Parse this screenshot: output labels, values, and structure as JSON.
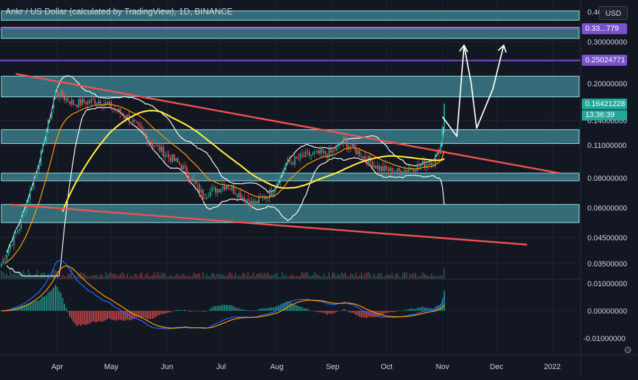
{
  "chart": {
    "title": "Ankr / US Dollar (calculated by TradingView), 1D, BINANCE",
    "currency": "USD"
  },
  "price_scale": {
    "ticks": [
      {
        "label": "0.40000000",
        "value": 0.4
      },
      {
        "label": "0.30000000",
        "value": 0.3
      },
      {
        "label": "0.20000000",
        "value": 0.2
      },
      {
        "label": "0.14000000",
        "value": 0.14
      },
      {
        "label": "0.11000000",
        "value": 0.11
      },
      {
        "label": "0.08000000",
        "value": 0.08
      },
      {
        "label": "0.06000000",
        "value": 0.06
      },
      {
        "label": "0.04500000",
        "value": 0.045
      },
      {
        "label": "0.03500000",
        "value": 0.035
      }
    ],
    "tags": [
      {
        "label": "0.33...779",
        "value": 0.34,
        "color": "#7b52ce"
      },
      {
        "label": "0.25024771",
        "value": 0.25024771,
        "color": "#7b52ce"
      },
      {
        "label": "0.16421228",
        "value": 0.16421228,
        "color": "#26a69a"
      }
    ],
    "countdown": "13:36:39"
  },
  "oscillator_scale": {
    "ticks": [
      {
        "label": "0.01000000",
        "value": 0.01
      },
      {
        "label": "0.00000000",
        "value": 0
      },
      {
        "label": "-0.01000000",
        "value": -0.01
      }
    ]
  },
  "time_axis": {
    "ticks": [
      {
        "label": "Apr",
        "day": 31
      },
      {
        "label": "May",
        "day": 61
      },
      {
        "label": "Jun",
        "day": 92
      },
      {
        "label": "Jul",
        "day": 122
      },
      {
        "label": "Aug",
        "day": 153
      },
      {
        "label": "Sep",
        "day": 184
      },
      {
        "label": "Oct",
        "day": 214
      },
      {
        "label": "Nov",
        "day": 245
      },
      {
        "label": "Dec",
        "day": 275
      },
      {
        "label": "2022",
        "day": 306
      }
    ]
  },
  "drawings": {
    "zones": [
      {
        "from": 0.37,
        "to": 0.405
      },
      {
        "from": 0.31,
        "to": 0.345
      },
      {
        "from": 0.176,
        "to": 0.215
      },
      {
        "from": 0.112,
        "to": 0.128
      },
      {
        "from": 0.078,
        "to": 0.084
      },
      {
        "from": 0.052,
        "to": 0.062
      }
    ],
    "zone_color": "#4fb3bf",
    "hlines": [
      {
        "value": 0.34,
        "color": "#7b52ce"
      },
      {
        "value": 0.25024771,
        "color": "#7b52ce"
      }
    ],
    "trend_color": "#ef5350",
    "trend_upper": [
      [
        8,
        0.22
      ],
      [
        310,
        0.084
      ]
    ],
    "trend_lower": [
      [
        5,
        0.062
      ],
      [
        292,
        0.042
      ]
    ],
    "projection": [
      [
        245,
        0.145
      ],
      [
        253,
        0.12
      ],
      [
        257,
        0.29
      ],
      [
        261,
        0.2
      ],
      [
        264,
        0.13
      ],
      [
        273,
        0.19
      ],
      [
        279,
        0.29
      ]
    ],
    "projection_color": "#ffffff"
  },
  "price_series": {
    "anchors": [
      [
        0,
        0.035
      ],
      [
        10,
        0.05
      ],
      [
        22,
        0.1
      ],
      [
        30,
        0.185
      ],
      [
        40,
        0.165
      ],
      [
        55,
        0.17
      ],
      [
        70,
        0.145
      ],
      [
        85,
        0.11
      ],
      [
        100,
        0.09
      ],
      [
        112,
        0.068
      ],
      [
        125,
        0.075
      ],
      [
        140,
        0.062
      ],
      [
        150,
        0.07
      ],
      [
        158,
        0.092
      ],
      [
        170,
        0.1
      ],
      [
        183,
        0.102
      ],
      [
        190,
        0.115
      ],
      [
        200,
        0.1
      ],
      [
        210,
        0.088
      ],
      [
        220,
        0.085
      ],
      [
        232,
        0.09
      ],
      [
        240,
        0.095
      ],
      [
        244,
        0.11
      ],
      [
        246,
        0.16421228
      ]
    ],
    "up_color": "#26a69a",
    "down_color": "#ef5350",
    "ema_color": "#ff9800",
    "sma200_color": "#ffeb3b",
    "band_color": "#ffffff"
  },
  "oscillator": {
    "macd_color": "#2962ff",
    "signal_color": "#ff9800"
  }
}
